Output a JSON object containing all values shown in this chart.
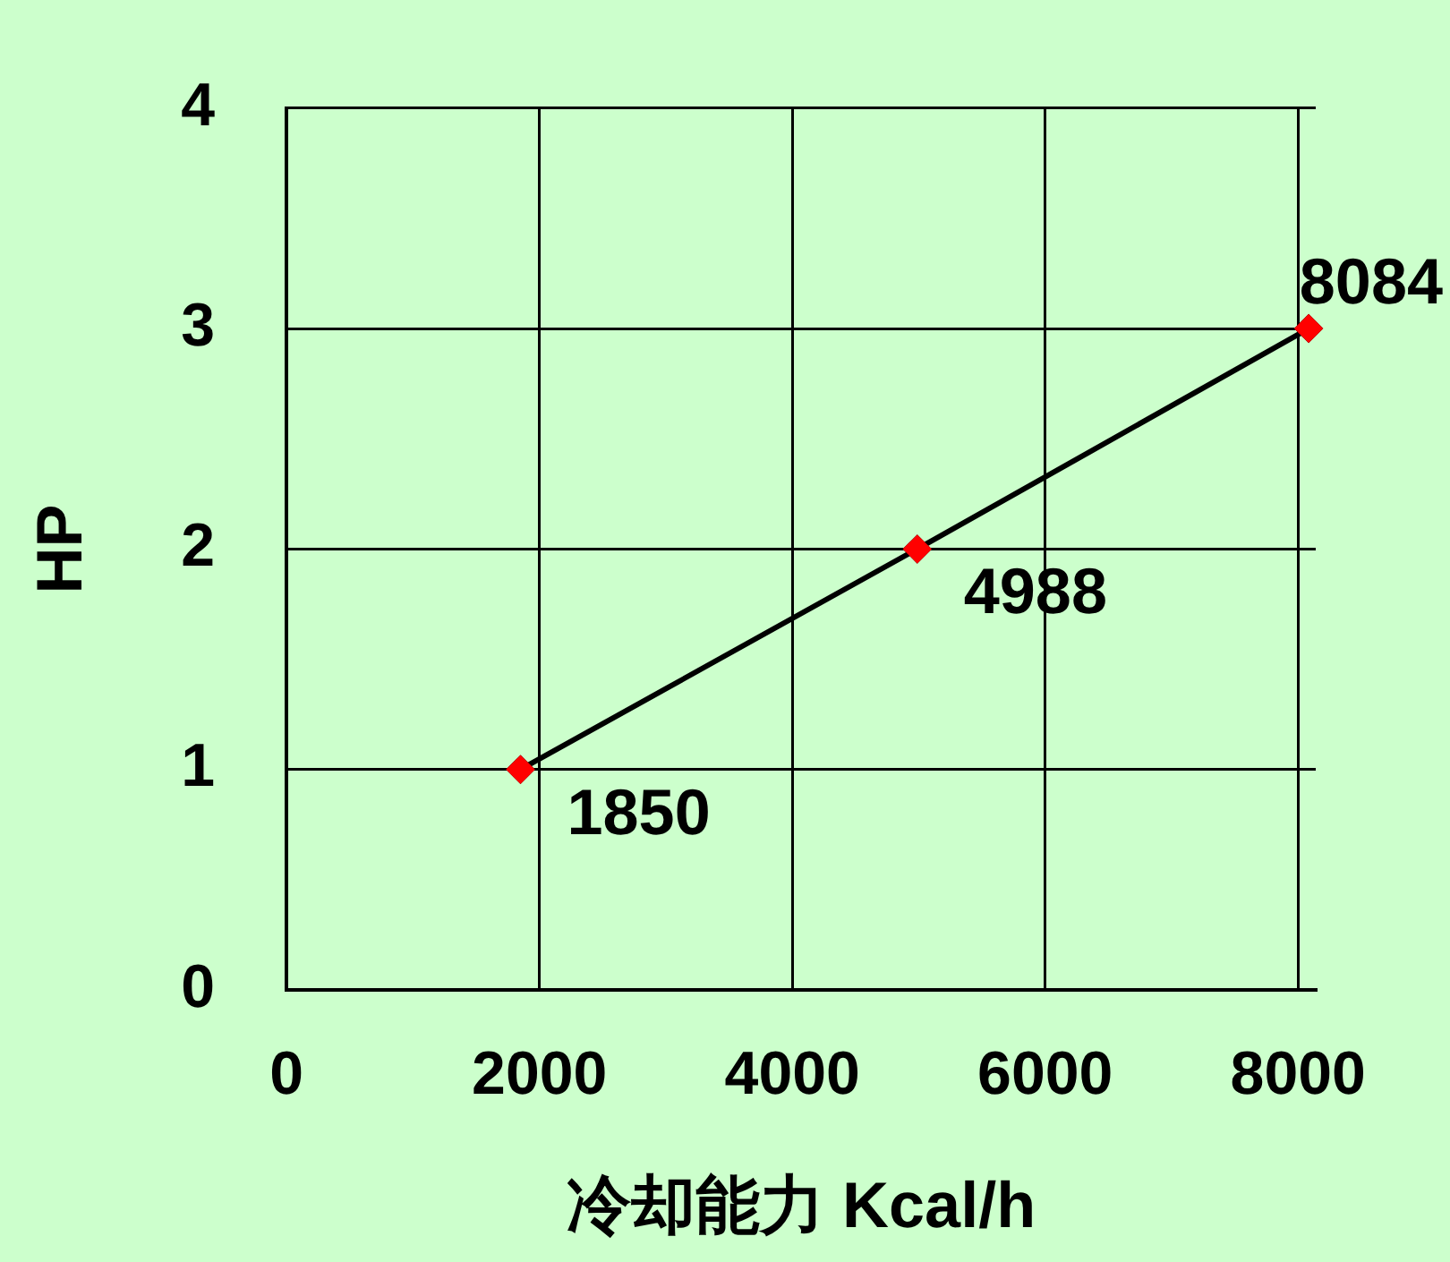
{
  "chart_data": {
    "type": "line",
    "xlabel": "冷却能力 Kcal/h",
    "ylabel": "HP",
    "x": [
      1850,
      4988,
      8084
    ],
    "series": [
      {
        "type": "line",
        "color": "#000000",
        "values": [
          1,
          2,
          3
        ]
      },
      {
        "type": "scatter",
        "color": "#ff0000",
        "values": [
          1,
          2,
          3
        ]
      }
    ],
    "annotations": [
      {
        "text": "1850",
        "x": 1850,
        "y": 1
      },
      {
        "text": "4988",
        "x": 4988,
        "y": 2
      },
      {
        "text": "8084",
        "x": 8084,
        "y": 3
      }
    ],
    "marker": "diamond",
    "xlim": [
      0,
      8140
    ],
    "xticks": [
      0,
      2000,
      4000,
      6000,
      8000
    ],
    "ylim": [
      0,
      4
    ],
    "yticks": [
      0,
      1,
      2,
      3,
      4
    ],
    "grid": true,
    "legend": false
  }
}
